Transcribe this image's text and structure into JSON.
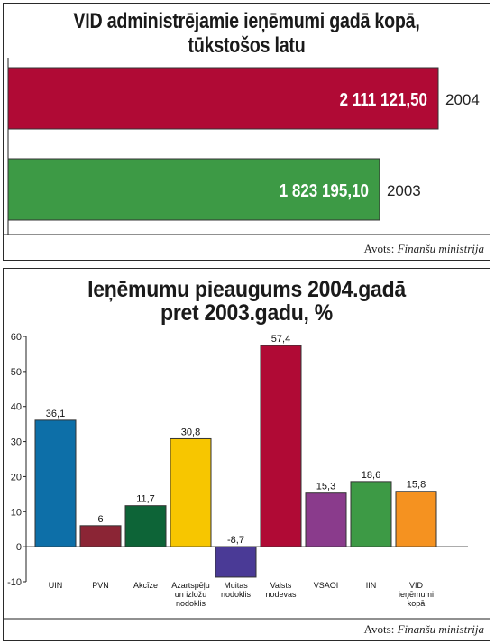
{
  "chart_data": [
    {
      "type": "bar",
      "orientation": "horizontal",
      "title_lines": [
        "VID administrējamie ieņēmumi gadā kopā,",
        "tūkstošos latu"
      ],
      "source_prefix": "Avots:",
      "source_name": "Finanšu ministrija",
      "categories": [
        "2004",
        "2003"
      ],
      "values": [
        2111121.5,
        1823195.1
      ],
      "value_labels": [
        "2 111 121,50",
        "1 823 195,10"
      ],
      "colors": [
        "#b00a35",
        "#3d9a45"
      ],
      "xlim": [
        0,
        2111121.5
      ]
    },
    {
      "type": "bar",
      "title_lines": [
        "Ieņēmumu pieaugums 2004.gadā",
        "pret 2003.gadu, %"
      ],
      "source_prefix": "Avots:",
      "source_name": "Finanšu ministrija",
      "categories": [
        [
          "UIN"
        ],
        [
          "PVN"
        ],
        [
          "Akcīze"
        ],
        [
          "Azartspēļu",
          "un izložu",
          "nodoklis"
        ],
        [
          "Muitas",
          "nodoklis"
        ],
        [
          "Valsts",
          "nodevas"
        ],
        [
          "VSAOI"
        ],
        [
          "IIN"
        ],
        [
          "VID",
          "ieņēmumi",
          "kopā"
        ]
      ],
      "values": [
        36.1,
        6,
        11.7,
        30.8,
        -8.7,
        57.4,
        15.3,
        18.6,
        15.8
      ],
      "value_labels": [
        "36,1",
        "6",
        "11,7",
        "30,8",
        "-8,7",
        "57,4",
        "15,3",
        "18,6",
        "15,8"
      ],
      "colors": [
        "#0d6fa8",
        "#8b2535",
        "#0d6437",
        "#f7c600",
        "#4a3a96",
        "#b00a35",
        "#8a3b8c",
        "#3d9a45",
        "#f59220"
      ],
      "ylim": [
        -10,
        60
      ],
      "yticks": [
        -10,
        0,
        10,
        20,
        30,
        40,
        50,
        60
      ]
    }
  ]
}
